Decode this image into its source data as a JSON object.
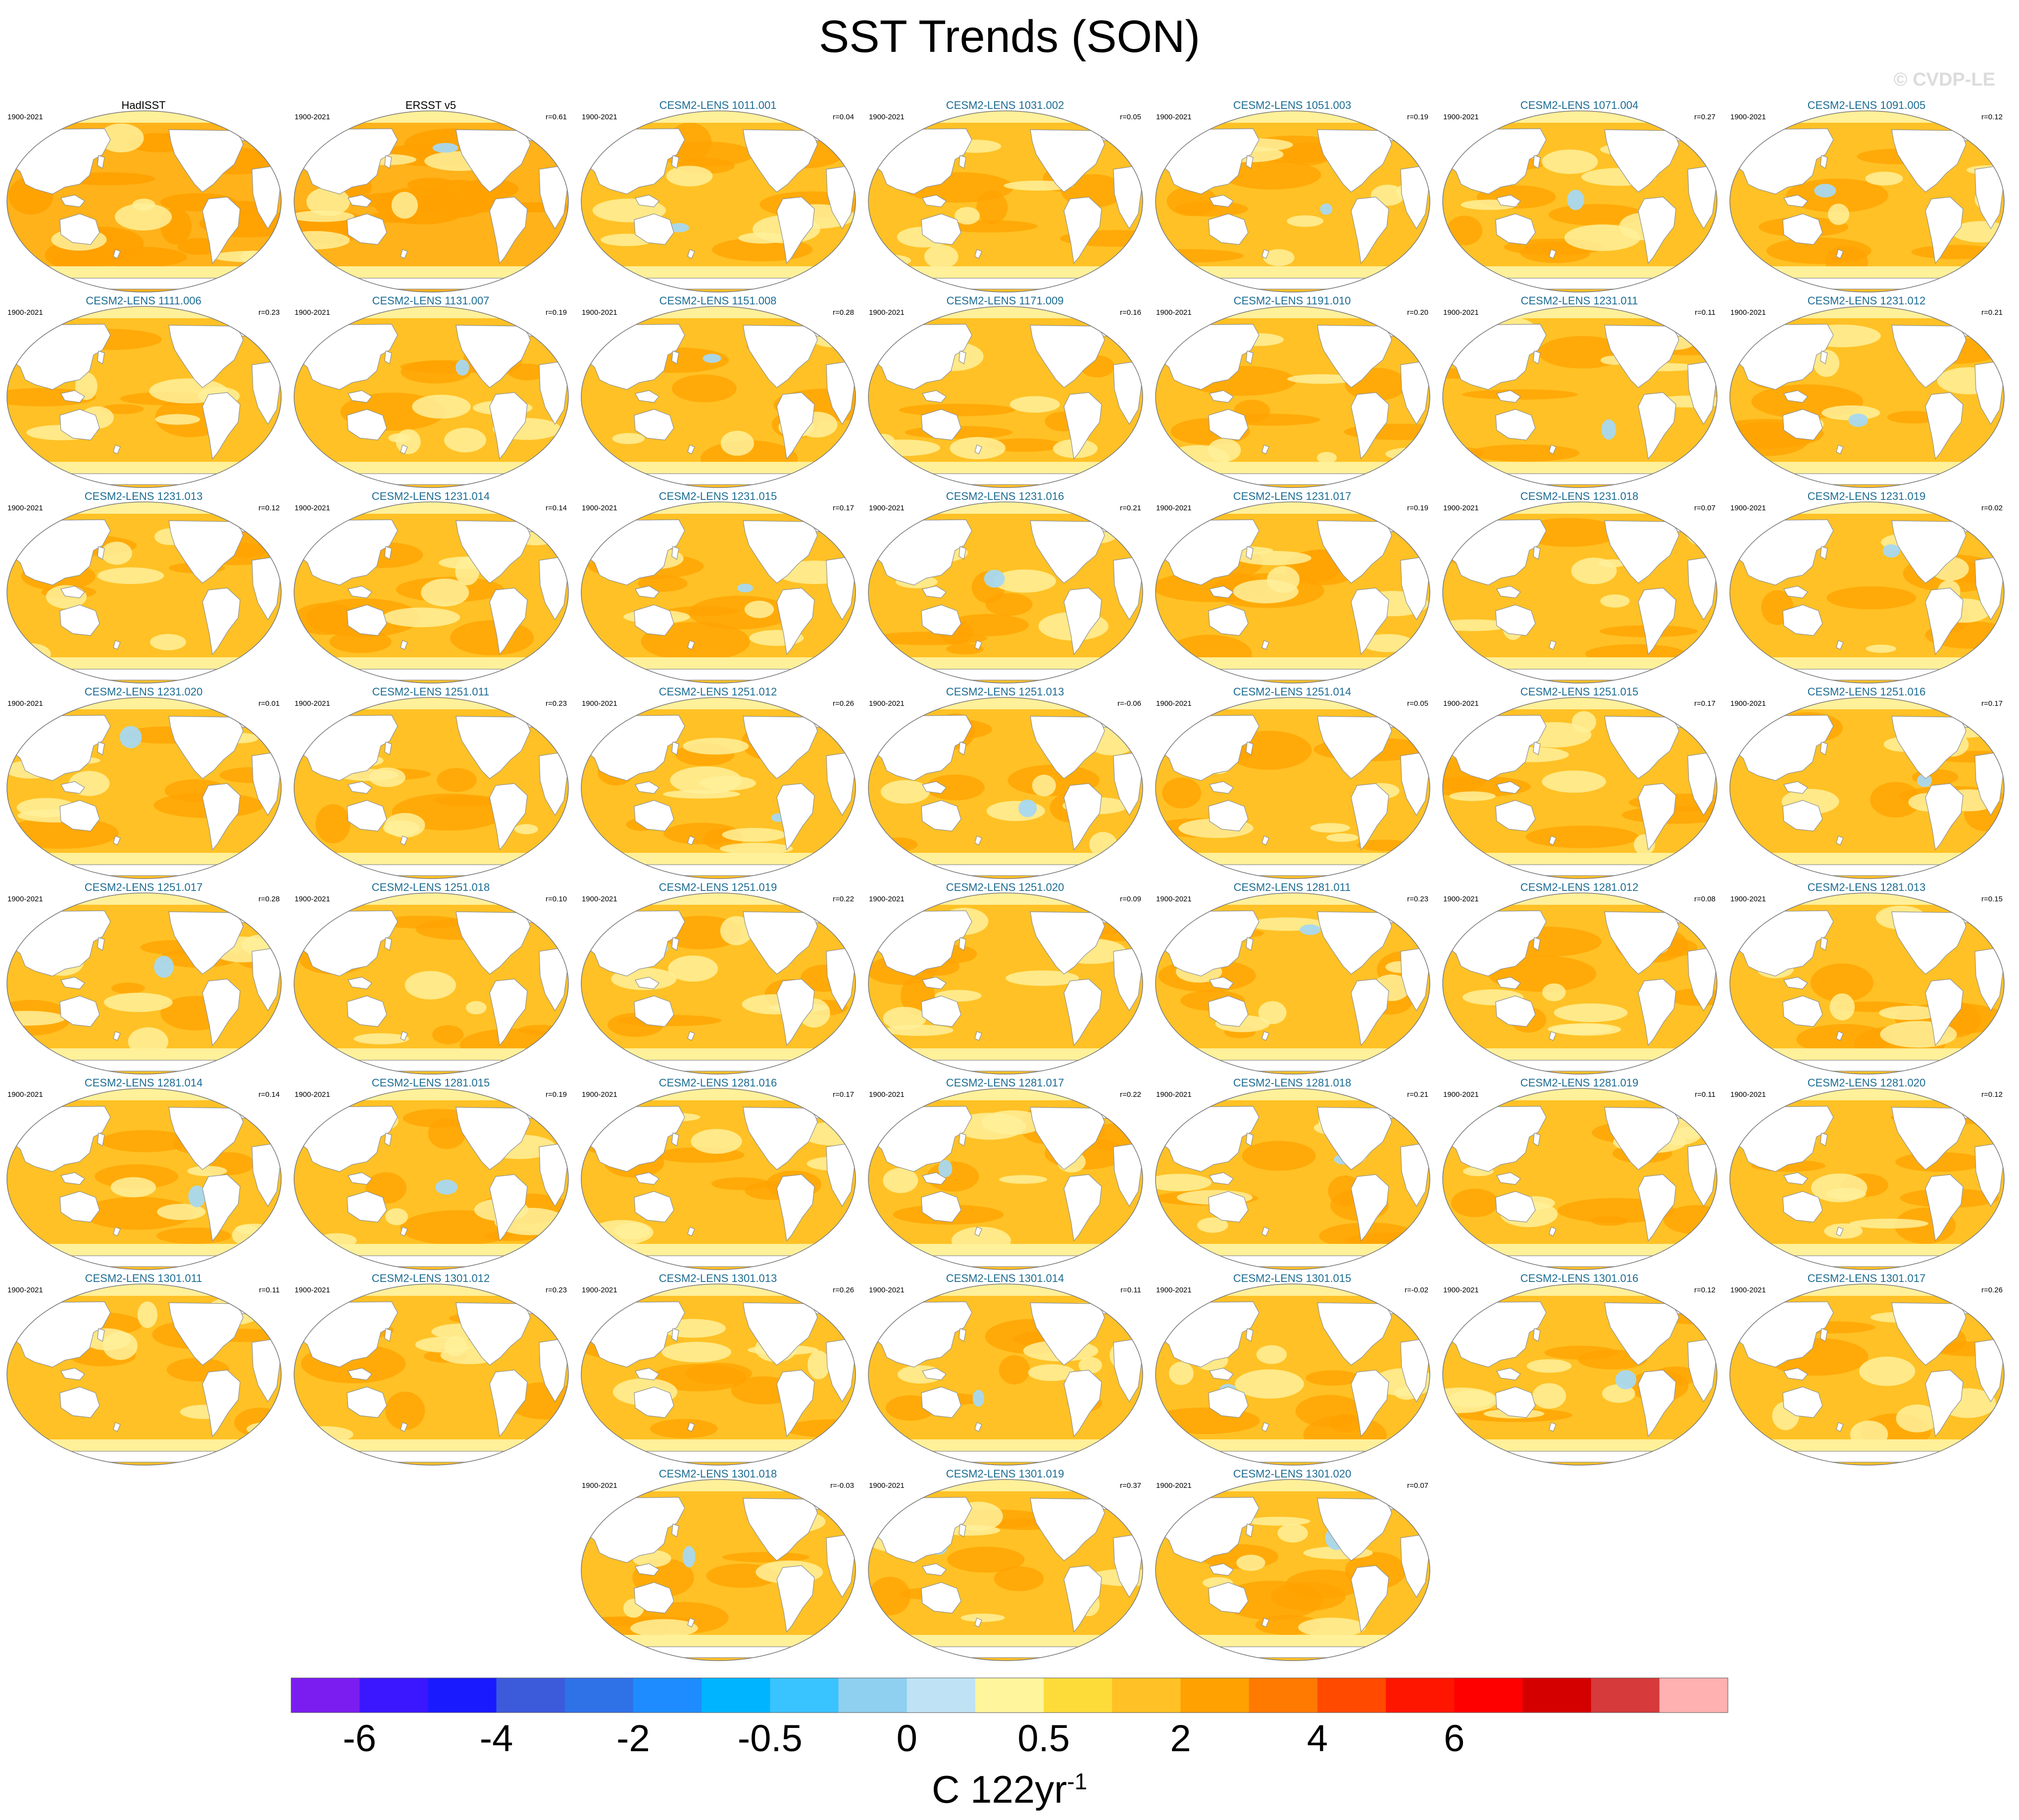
{
  "title": "SST Trends (SON)",
  "watermark": "© CVDP-LE",
  "period": "1900-2021",
  "panels": [
    {
      "title": "HadISST",
      "r": "",
      "obs": true
    },
    {
      "title": "ERSST v5",
      "r": "r=0.61",
      "obs": true
    },
    {
      "title": "CESM2-LENS 1011.001",
      "r": "r=0.04"
    },
    {
      "title": "CESM2-LENS 1031.002",
      "r": "r=0.05"
    },
    {
      "title": "CESM2-LENS 1051.003",
      "r": "r=0.19"
    },
    {
      "title": "CESM2-LENS 1071.004",
      "r": "r=0.27"
    },
    {
      "title": "CESM2-LENS 1091.005",
      "r": "r=0.12"
    },
    {
      "title": "CESM2-LENS 1111.006",
      "r": "r=0.23"
    },
    {
      "title": "CESM2-LENS 1131.007",
      "r": "r=0.19"
    },
    {
      "title": "CESM2-LENS 1151.008",
      "r": "r=0.28"
    },
    {
      "title": "CESM2-LENS 1171.009",
      "r": "r=0.16"
    },
    {
      "title": "CESM2-LENS 1191.010",
      "r": "r=0.20"
    },
    {
      "title": "CESM2-LENS 1231.011",
      "r": "r=0.11"
    },
    {
      "title": "CESM2-LENS 1231.012",
      "r": "r=0.21"
    },
    {
      "title": "CESM2-LENS 1231.013",
      "r": "r=0.12"
    },
    {
      "title": "CESM2-LENS 1231.014",
      "r": "r=0.14"
    },
    {
      "title": "CESM2-LENS 1231.015",
      "r": "r=0.17"
    },
    {
      "title": "CESM2-LENS 1231.016",
      "r": "r=0.21"
    },
    {
      "title": "CESM2-LENS 1231.017",
      "r": "r=0.19"
    },
    {
      "title": "CESM2-LENS 1231.018",
      "r": "r=0.07"
    },
    {
      "title": "CESM2-LENS 1231.019",
      "r": "r=0.02"
    },
    {
      "title": "CESM2-LENS 1231.020",
      "r": "r=0.01"
    },
    {
      "title": "CESM2-LENS 1251.011",
      "r": "r=0.23"
    },
    {
      "title": "CESM2-LENS 1251.012",
      "r": "r=0.26"
    },
    {
      "title": "CESM2-LENS 1251.013",
      "r": "r=-0.06"
    },
    {
      "title": "CESM2-LENS 1251.014",
      "r": "r=0.05"
    },
    {
      "title": "CESM2-LENS 1251.015",
      "r": "r=0.17"
    },
    {
      "title": "CESM2-LENS 1251.016",
      "r": "r=0.17"
    },
    {
      "title": "CESM2-LENS 1251.017",
      "r": "r=0.28"
    },
    {
      "title": "CESM2-LENS 1251.018",
      "r": "r=0.10"
    },
    {
      "title": "CESM2-LENS 1251.019",
      "r": "r=0.22"
    },
    {
      "title": "CESM2-LENS 1251.020",
      "r": "r=0.09"
    },
    {
      "title": "CESM2-LENS 1281.011",
      "r": "r=0.23"
    },
    {
      "title": "CESM2-LENS 1281.012",
      "r": "r=0.08"
    },
    {
      "title": "CESM2-LENS 1281.013",
      "r": "r=0.15"
    },
    {
      "title": "CESM2-LENS 1281.014",
      "r": "r=0.14"
    },
    {
      "title": "CESM2-LENS 1281.015",
      "r": "r=0.19"
    },
    {
      "title": "CESM2-LENS 1281.016",
      "r": "r=0.17"
    },
    {
      "title": "CESM2-LENS 1281.017",
      "r": "r=0.22"
    },
    {
      "title": "CESM2-LENS 1281.018",
      "r": "r=0.21"
    },
    {
      "title": "CESM2-LENS 1281.019",
      "r": "r=0.11"
    },
    {
      "title": "CESM2-LENS 1281.020",
      "r": "r=0.12"
    },
    {
      "title": "CESM2-LENS 1301.011",
      "r": "r=0.11"
    },
    {
      "title": "CESM2-LENS 1301.012",
      "r": "r=0.23"
    },
    {
      "title": "CESM2-LENS 1301.013",
      "r": "r=0.26"
    },
    {
      "title": "CESM2-LENS 1301.014",
      "r": "r=0.11"
    },
    {
      "title": "CESM2-LENS 1301.015",
      "r": "r=-0.02"
    },
    {
      "title": "CESM2-LENS 1301.016",
      "r": "r=0.12"
    },
    {
      "title": "CESM2-LENS 1301.017",
      "r": "r=0.26"
    },
    {
      "title": "CESM2-LENS 1301.018",
      "r": "r=-0.03"
    },
    {
      "title": "CESM2-LENS 1301.019",
      "r": "r=0.37"
    },
    {
      "title": "CESM2-LENS 1301.020",
      "r": "r=0.07"
    }
  ],
  "colors": {
    "ocean_base": "#ffc125",
    "ocean_warm": "#ffa100",
    "ocean_light": "#fff09a",
    "ocean_cool": "#a8d8f0",
    "land": "#ffffff",
    "coast": "#909090",
    "title_model": "#1c6c93"
  },
  "colorbar": {
    "colors": [
      "#7b1df0",
      "#3a17ff",
      "#1a1aff",
      "#3b5bdb",
      "#2f72e8",
      "#1e8cff",
      "#00b4ff",
      "#39c3ff",
      "#8fcff0",
      "#bfe3f5",
      "#fff59d",
      "#fddc3a",
      "#ffc125",
      "#ffa100",
      "#ff7a00",
      "#ff4a00",
      "#ff1600",
      "#ff0000",
      "#d40000",
      "#d63a3a",
      "#ffb0b0"
    ],
    "tick_labels": [
      "-6",
      "-4",
      "-2",
      "-0.5",
      "0",
      "0.5",
      "2",
      "4",
      "6"
    ],
    "unit": "C 122yr",
    "unit_exp": "-1"
  }
}
